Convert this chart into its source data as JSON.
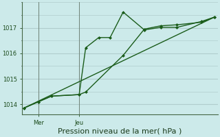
{
  "xlabel": "Pression niveau de la mer( hPa )",
  "bg_color": "#cceaea",
  "grid_color": "#b8d8d8",
  "line_color": "#1a5c1a",
  "xlim": [
    0,
    12
  ],
  "ylim": [
    1013.6,
    1018.0
  ],
  "yticks": [
    1014,
    1015,
    1016,
    1017
  ],
  "xtick_positions": [
    1.0,
    3.5
  ],
  "xtick_labels": [
    "Mer",
    "Jeu"
  ],
  "vline_x": [
    1.0,
    3.5
  ],
  "series1_x": [
    0.1,
    1.0,
    1.8,
    3.5,
    3.9,
    4.7,
    5.4,
    6.2,
    7.5,
    8.5,
    9.5,
    11.0,
    11.8
  ],
  "series1_y": [
    1013.85,
    1014.1,
    1014.32,
    1014.38,
    1016.22,
    1016.62,
    1016.62,
    1017.62,
    1016.92,
    1017.02,
    1017.02,
    1017.25,
    1017.42
  ],
  "series2_x": [
    0.1,
    1.0,
    1.8,
    3.5,
    3.9,
    6.2,
    7.5,
    8.5,
    9.5,
    11.0,
    11.8
  ],
  "series2_y": [
    1013.85,
    1014.1,
    1014.32,
    1014.38,
    1014.48,
    1015.92,
    1016.95,
    1017.08,
    1017.12,
    1017.22,
    1017.42
  ],
  "series3_x": [
    0.1,
    11.8
  ],
  "series3_y": [
    1013.85,
    1017.42
  ],
  "marker_size": 2.5,
  "linewidth": 1.0,
  "xlabel_fontsize": 8
}
